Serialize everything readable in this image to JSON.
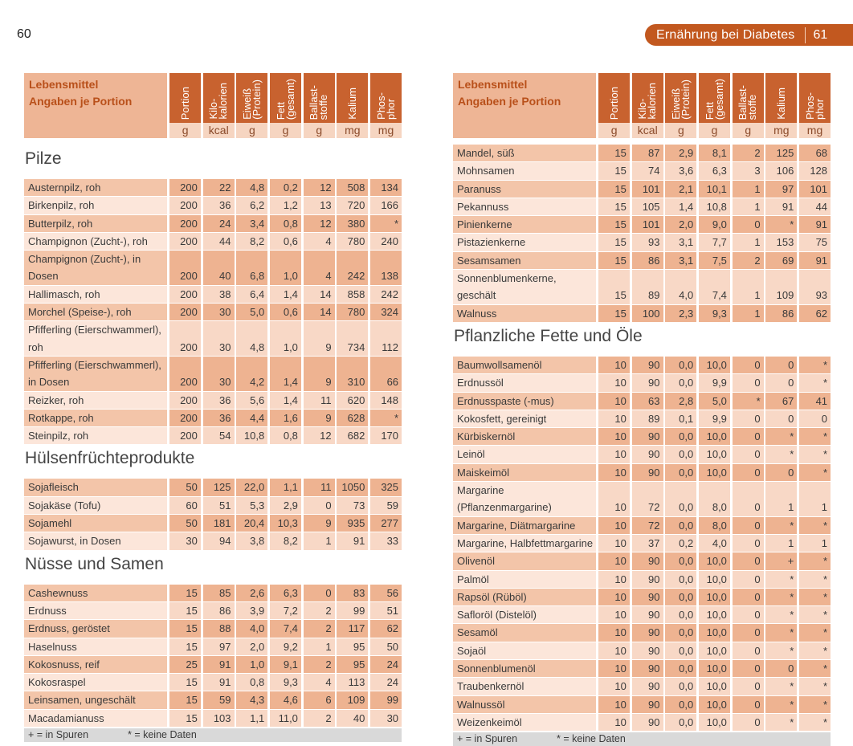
{
  "left_page_number": "60",
  "running_head": {
    "title": "Ernährung bei Diabetes",
    "page_number": "61"
  },
  "table_header": {
    "label": "Lebensmittel\nAngaben je Portion",
    "columns": [
      {
        "label": "Portion",
        "unit": "g"
      },
      {
        "label": "Kilo-\nkalorien",
        "unit": "kcal"
      },
      {
        "label": "Eiweiß\n(Protein)",
        "unit": "g"
      },
      {
        "label": "Fett\n(gesamt)",
        "unit": "g"
      },
      {
        "label": "Ballast-\nstoffe",
        "unit": "g"
      },
      {
        "label": "Kalium",
        "unit": "mg"
      },
      {
        "label": "Phos-\nphor",
        "unit": "mg"
      }
    ]
  },
  "legend": {
    "trace": "+ = in Spuren",
    "nodata": "* = keine Daten"
  },
  "pages": [
    {
      "sections": [
        {
          "title": "Pilze",
          "rows": [
            {
              "name": "Austernpilz, roh",
              "values": [
                "200",
                "22",
                "4,8",
                "0,2",
                "12",
                "508",
                "134"
              ]
            },
            {
              "name": "Birkenpilz, roh",
              "values": [
                "200",
                "36",
                "6,2",
                "1,2",
                "13",
                "720",
                "166"
              ]
            },
            {
              "name": "Butterpilz, roh",
              "values": [
                "200",
                "24",
                "3,4",
                "0,8",
                "12",
                "380",
                "*"
              ]
            },
            {
              "name": "Champignon (Zucht-), roh",
              "values": [
                "200",
                "44",
                "8,2",
                "0,6",
                "4",
                "780",
                "240"
              ]
            },
            {
              "name": "Champignon (Zucht-), in Dosen",
              "values": [
                "200",
                "40",
                "6,8",
                "1,0",
                "4",
                "242",
                "138"
              ]
            },
            {
              "name": "Hallimasch, roh",
              "values": [
                "200",
                "38",
                "6,4",
                "1,4",
                "14",
                "858",
                "242"
              ]
            },
            {
              "name": "Morchel (Speise-), roh",
              "values": [
                "200",
                "30",
                "5,0",
                "0,6",
                "14",
                "780",
                "324"
              ]
            },
            {
              "name": "Pfifferling (Eierschwammerl),\nroh",
              "values": [
                "200",
                "30",
                "4,8",
                "1,0",
                "9",
                "734",
                "112"
              ]
            },
            {
              "name": "Pfifferling (Eierschwammerl),\nin Dosen",
              "values": [
                "200",
                "30",
                "4,2",
                "1,4",
                "9",
                "310",
                "66"
              ]
            },
            {
              "name": "Reizker, roh",
              "values": [
                "200",
                "36",
                "5,6",
                "1,4",
                "11",
                "620",
                "148"
              ]
            },
            {
              "name": "Rotkappe, roh",
              "values": [
                "200",
                "36",
                "4,4",
                "1,6",
                "9",
                "628",
                "*"
              ]
            },
            {
              "name": "Steinpilz, roh",
              "values": [
                "200",
                "54",
                "10,8",
                "0,8",
                "12",
                "682",
                "170"
              ]
            }
          ]
        },
        {
          "title": "Hülsenfrüchteprodukte",
          "rows": [
            {
              "name": "Sojafleisch",
              "values": [
                "50",
                "125",
                "22,0",
                "1,1",
                "11",
                "1050",
                "325"
              ]
            },
            {
              "name": "Sojakäse (Tofu)",
              "values": [
                "60",
                "51",
                "5,3",
                "2,9",
                "0",
                "73",
                "59"
              ]
            },
            {
              "name": "Sojamehl",
              "values": [
                "50",
                "181",
                "20,4",
                "10,3",
                "9",
                "935",
                "277"
              ]
            },
            {
              "name": "Sojawurst, in Dosen",
              "values": [
                "30",
                "94",
                "3,8",
                "8,2",
                "1",
                "91",
                "33"
              ]
            }
          ]
        },
        {
          "title": "Nüsse und Samen",
          "rows": [
            {
              "name": "Cashewnuss",
              "values": [
                "15",
                "85",
                "2,6",
                "6,3",
                "0",
                "83",
                "56"
              ]
            },
            {
              "name": "Erdnuss",
              "values": [
                "15",
                "86",
                "3,9",
                "7,2",
                "2",
                "99",
                "51"
              ]
            },
            {
              "name": "Erdnuss, geröstet",
              "values": [
                "15",
                "88",
                "4,0",
                "7,4",
                "2",
                "117",
                "62"
              ]
            },
            {
              "name": "Haselnuss",
              "values": [
                "15",
                "97",
                "2,0",
                "9,2",
                "1",
                "95",
                "50"
              ]
            },
            {
              "name": "Kokosnuss, reif",
              "values": [
                "25",
                "91",
                "1,0",
                "9,1",
                "2",
                "95",
                "24"
              ]
            },
            {
              "name": "Kokosraspel",
              "values": [
                "15",
                "91",
                "0,8",
                "9,3",
                "4",
                "113",
                "24"
              ]
            },
            {
              "name": "Leinsamen, ungeschält",
              "values": [
                "15",
                "59",
                "4,3",
                "4,6",
                "6",
                "109",
                "99"
              ]
            },
            {
              "name": "Macadamianuss",
              "values": [
                "15",
                "103",
                "1,1",
                "11,0",
                "2",
                "40",
                "30"
              ]
            }
          ]
        }
      ]
    },
    {
      "sections": [
        {
          "title": "",
          "rows": [
            {
              "name": "Mandel, süß",
              "values": [
                "15",
                "87",
                "2,9",
                "8,1",
                "2",
                "125",
                "68"
              ]
            },
            {
              "name": "Mohnsamen",
              "values": [
                "15",
                "74",
                "3,6",
                "6,3",
                "3",
                "106",
                "128"
              ]
            },
            {
              "name": "Paranuss",
              "values": [
                "15",
                "101",
                "2,1",
                "10,1",
                "1",
                "97",
                "101"
              ]
            },
            {
              "name": "Pekannuss",
              "values": [
                "15",
                "105",
                "1,4",
                "10,8",
                "1",
                "91",
                "44"
              ]
            },
            {
              "name": "Pinienkerne",
              "values": [
                "15",
                "101",
                "2,0",
                "9,0",
                "0",
                "*",
                "91"
              ]
            },
            {
              "name": "Pistazienkerne",
              "values": [
                "15",
                "93",
                "3,1",
                "7,7",
                "1",
                "153",
                "75"
              ]
            },
            {
              "name": "Sesamsamen",
              "values": [
                "15",
                "86",
                "3,1",
                "7,5",
                "2",
                "69",
                "91"
              ]
            },
            {
              "name": "Sonnenblumenkerne, geschält",
              "values": [
                "15",
                "89",
                "4,0",
                "7,4",
                "1",
                "109",
                "93"
              ]
            },
            {
              "name": "Walnuss",
              "values": [
                "15",
                "100",
                "2,3",
                "9,3",
                "1",
                "86",
                "62"
              ]
            }
          ]
        },
        {
          "title": "Pflanzliche Fette und Öle",
          "rows": [
            {
              "name": "Baumwollsamenöl",
              "values": [
                "10",
                "90",
                "0,0",
                "10,0",
                "0",
                "0",
                "*"
              ]
            },
            {
              "name": "Erdnussöl",
              "values": [
                "10",
                "90",
                "0,0",
                "9,9",
                "0",
                "0",
                "*"
              ]
            },
            {
              "name": "Erdnusspaste (-mus)",
              "values": [
                "10",
                "63",
                "2,8",
                "5,0",
                "*",
                "67",
                "41"
              ]
            },
            {
              "name": "Kokosfett, gereinigt",
              "values": [
                "10",
                "89",
                "0,1",
                "9,9",
                "0",
                "0",
                "0"
              ]
            },
            {
              "name": "Kürbiskernöl",
              "values": [
                "10",
                "90",
                "0,0",
                "10,0",
                "0",
                "*",
                "*"
              ]
            },
            {
              "name": "Leinöl",
              "values": [
                "10",
                "90",
                "0,0",
                "10,0",
                "0",
                "*",
                "*"
              ]
            },
            {
              "name": "Maiskeimöl",
              "values": [
                "10",
                "90",
                "0,0",
                "10,0",
                "0",
                "0",
                "*"
              ]
            },
            {
              "name": "Margarine\n(Pflanzenmargarine)",
              "values": [
                "10",
                "72",
                "0,0",
                "8,0",
                "0",
                "1",
                "1"
              ]
            },
            {
              "name": "Margarine, Diätmargarine",
              "values": [
                "10",
                "72",
                "0,0",
                "8,0",
                "0",
                "*",
                "*"
              ]
            },
            {
              "name": "Margarine, Halbfettmargarine",
              "values": [
                "10",
                "37",
                "0,2",
                "4,0",
                "0",
                "1",
                "1"
              ]
            },
            {
              "name": "Olivenöl",
              "values": [
                "10",
                "90",
                "0,0",
                "10,0",
                "0",
                "+",
                "*"
              ]
            },
            {
              "name": "Palmöl",
              "values": [
                "10",
                "90",
                "0,0",
                "10,0",
                "0",
                "*",
                "*"
              ]
            },
            {
              "name": "Rapsöl (Rüböl)",
              "values": [
                "10",
                "90",
                "0,0",
                "10,0",
                "0",
                "*",
                "*"
              ]
            },
            {
              "name": "Safloröl (Distelöl)",
              "values": [
                "10",
                "90",
                "0,0",
                "10,0",
                "0",
                "*",
                "*"
              ]
            },
            {
              "name": "Sesamöl",
              "values": [
                "10",
                "90",
                "0,0",
                "10,0",
                "0",
                "*",
                "*"
              ]
            },
            {
              "name": "Sojaöl",
              "values": [
                "10",
                "90",
                "0,0",
                "10,0",
                "0",
                "*",
                "*"
              ]
            },
            {
              "name": "Sonnenblumenöl",
              "values": [
                "10",
                "90",
                "0,0",
                "10,0",
                "0",
                "0",
                "*"
              ]
            },
            {
              "name": "Traubenkernöl",
              "values": [
                "10",
                "90",
                "0,0",
                "10,0",
                "0",
                "*",
                "*"
              ]
            },
            {
              "name": "Walnussöl",
              "values": [
                "10",
                "90",
                "0,0",
                "10,0",
                "0",
                "*",
                "*"
              ]
            },
            {
              "name": "Weizenkeimöl",
              "values": [
                "10",
                "90",
                "0,0",
                "10,0",
                "0",
                "*",
                "*"
              ]
            }
          ]
        }
      ]
    }
  ]
}
